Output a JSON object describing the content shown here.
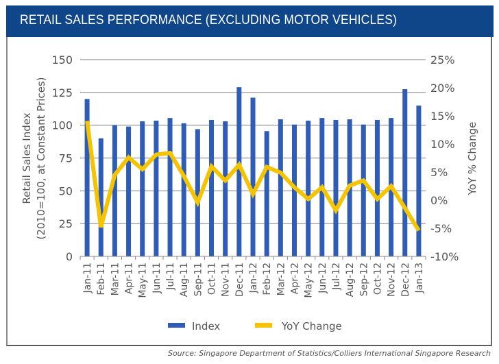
{
  "header": {
    "title": "RETAIL SALES PERFORMANCE (EXCLUDING MOTOR VEHICLES)"
  },
  "source_note": "Source: Singapore Department of Statistics/Colliers International Singapore Research",
  "colors": {
    "header_bg": "#0f4689",
    "bar": "#2f5cb5",
    "line": "#f5c400",
    "grid": "#a8a8a8",
    "text": "#555555"
  },
  "chart_data": {
    "type": "bar",
    "title": "RETAIL SALES PERFORMANCE (EXCLUDING MOTOR VEHICLES)",
    "categories": [
      "Jan-11",
      "Feb-11",
      "Mar-11",
      "Apr-11",
      "May-11",
      "Jun-11",
      "Jul-11",
      "Aug-11",
      "Sep-11",
      "Oct-11",
      "Nov-11",
      "Dec-11",
      "Jan-12",
      "Feb-12",
      "Mar-12",
      "Apr-12",
      "May-12",
      "Jun-12",
      "Jul-12",
      "Aug-12",
      "Sep-12",
      "Oct-12",
      "Nov-12",
      "Dec-12",
      "Jan-13"
    ],
    "series": [
      {
        "name": "Index",
        "type": "bar",
        "axis": "left",
        "values": [
          120,
          90,
          100,
          99,
          103,
          103.5,
          105.5,
          101.5,
          97,
          104,
          103,
          129,
          121,
          95.5,
          104.5,
          100.5,
          103.5,
          105.5,
          104,
          104.5,
          100.5,
          104,
          105.5,
          127.5,
          115
        ]
      },
      {
        "name": "YoY Change",
        "type": "line",
        "axis": "right",
        "values": [
          14.1,
          -4.8,
          4.5,
          7.6,
          5.5,
          8.1,
          8.4,
          4.3,
          -0.4,
          6.0,
          3.5,
          6.3,
          1.1,
          5.9,
          4.9,
          2.3,
          0.2,
          2.3,
          -1.8,
          2.6,
          3.5,
          0.2,
          2.5,
          -1.4,
          -5.4
        ]
      }
    ],
    "xlabel": "",
    "ylabel": "Retail Sales Index",
    "ylabel_sub": "(2010=100, at Constant Prices)",
    "ylim": [
      0,
      150
    ],
    "yticks": [
      "0",
      "25",
      "50",
      "75",
      "100",
      "125",
      "150"
    ],
    "ytick_values": [
      0,
      25,
      50,
      75,
      100,
      125,
      150
    ],
    "y2label": "YoY % Change",
    "y2lim": [
      -10,
      25
    ],
    "y2ticks": [
      "-10%",
      "-5%",
      "0%",
      "5%",
      "10%",
      "15%",
      "20%",
      "25%"
    ],
    "y2tick_values": [
      -10,
      -5,
      0,
      5,
      10,
      15,
      20,
      25
    ],
    "grid": true,
    "legend": {
      "placement": "bottom-center",
      "entries": [
        "Index",
        "YoY Change"
      ]
    }
  }
}
